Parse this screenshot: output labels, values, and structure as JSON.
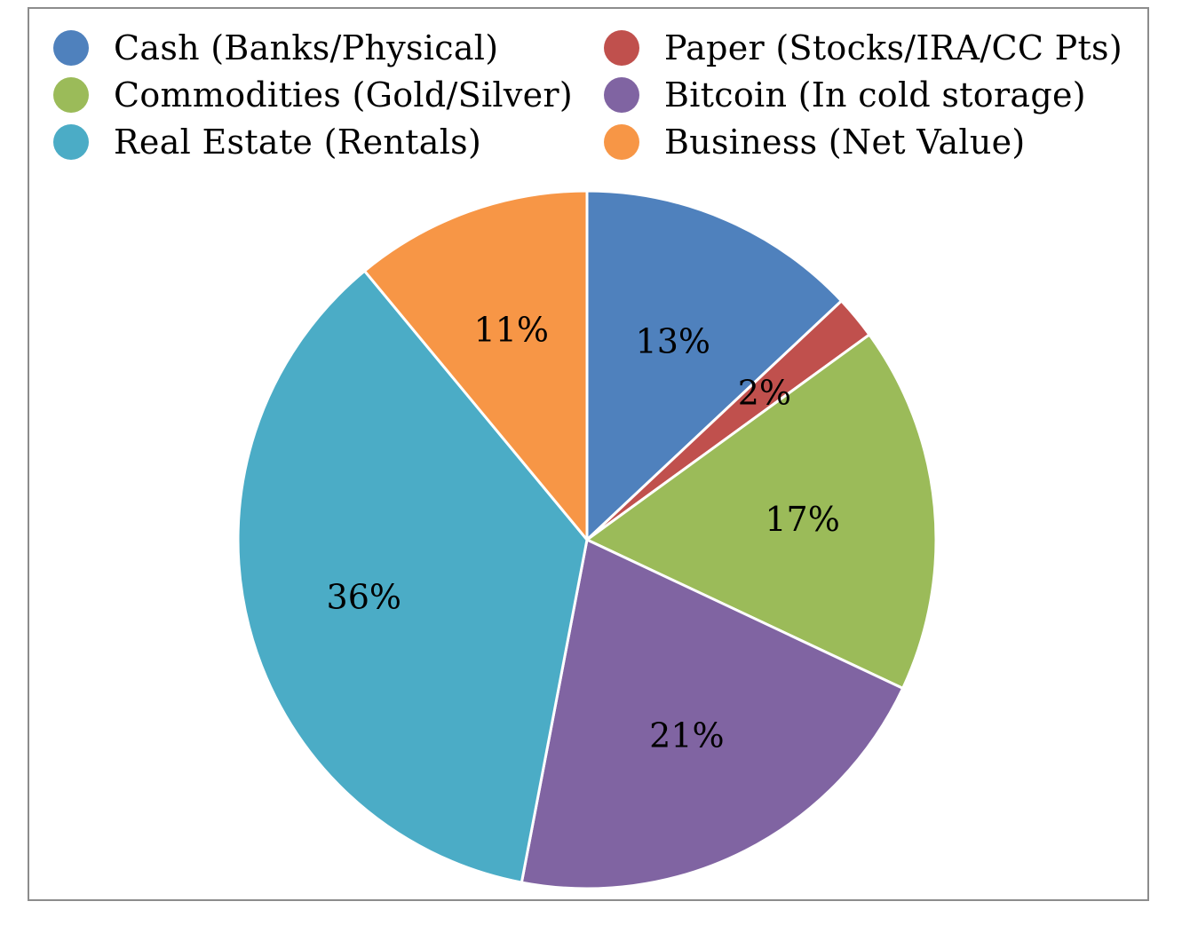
{
  "chart_data": {
    "type": "pie",
    "title": "",
    "legend_position": "top",
    "slices": [
      {
        "label": "Cash (Banks/Physical)",
        "value": 13,
        "value_label": "13%",
        "color": "#4F81BD"
      },
      {
        "label": "Paper (Stocks/IRA/CC Pts)",
        "value": 2,
        "value_label": "2%",
        "color": "#C0504D"
      },
      {
        "label": "Commodities (Gold/Silver)",
        "value": 17,
        "value_label": "17%",
        "color": "#9BBB59"
      },
      {
        "label": "Bitcoin (In cold storage)",
        "value": 21,
        "value_label": "21%",
        "color": "#8064A2"
      },
      {
        "label": "Real Estate (Rentals)",
        "value": 36,
        "value_label": "36%",
        "color": "#4BACC6"
      },
      {
        "label": "Business (Net Value)",
        "value": 11,
        "value_label": "11%",
        "color": "#F79646"
      }
    ]
  }
}
